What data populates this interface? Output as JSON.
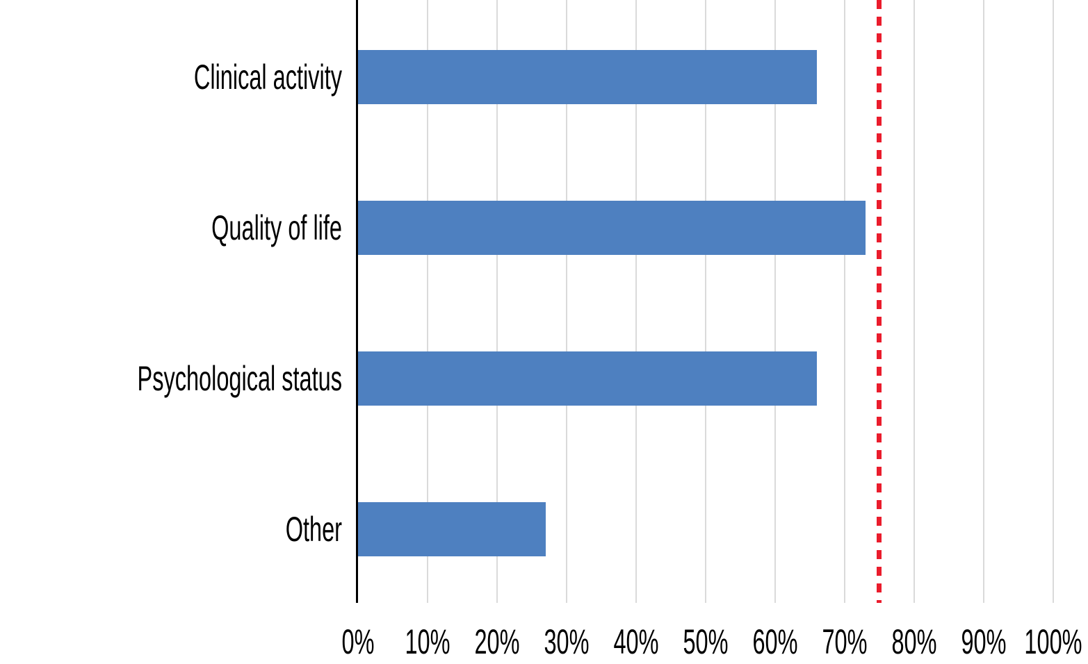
{
  "chart_data": {
    "type": "bar",
    "orientation": "horizontal",
    "title": "",
    "xlabel": "",
    "ylabel": "",
    "categories": [
      "Clinical activity",
      "Quality of life",
      "Psychological status",
      "Other"
    ],
    "values": [
      66,
      73,
      66,
      27
    ],
    "value_unit": "%",
    "xlim": [
      0,
      100
    ],
    "tick_values": [
      0,
      10,
      20,
      30,
      40,
      50,
      60,
      70,
      80,
      90,
      100
    ],
    "x_ticks": [
      "0%",
      "10%",
      "20%",
      "30%",
      "40%",
      "50%",
      "60%",
      "70%",
      "80%",
      "90%",
      "100%"
    ],
    "grid": "vertical gridlines every 10%",
    "legend": false,
    "reference_line": {
      "value": 75,
      "style": "dashed",
      "color": "#EA1C2C"
    },
    "colors": {
      "bar": "#4E80C0",
      "gridline": "#DADADA",
      "axis": "#000000",
      "text": "#000000",
      "background": "#FFFFFF"
    }
  }
}
